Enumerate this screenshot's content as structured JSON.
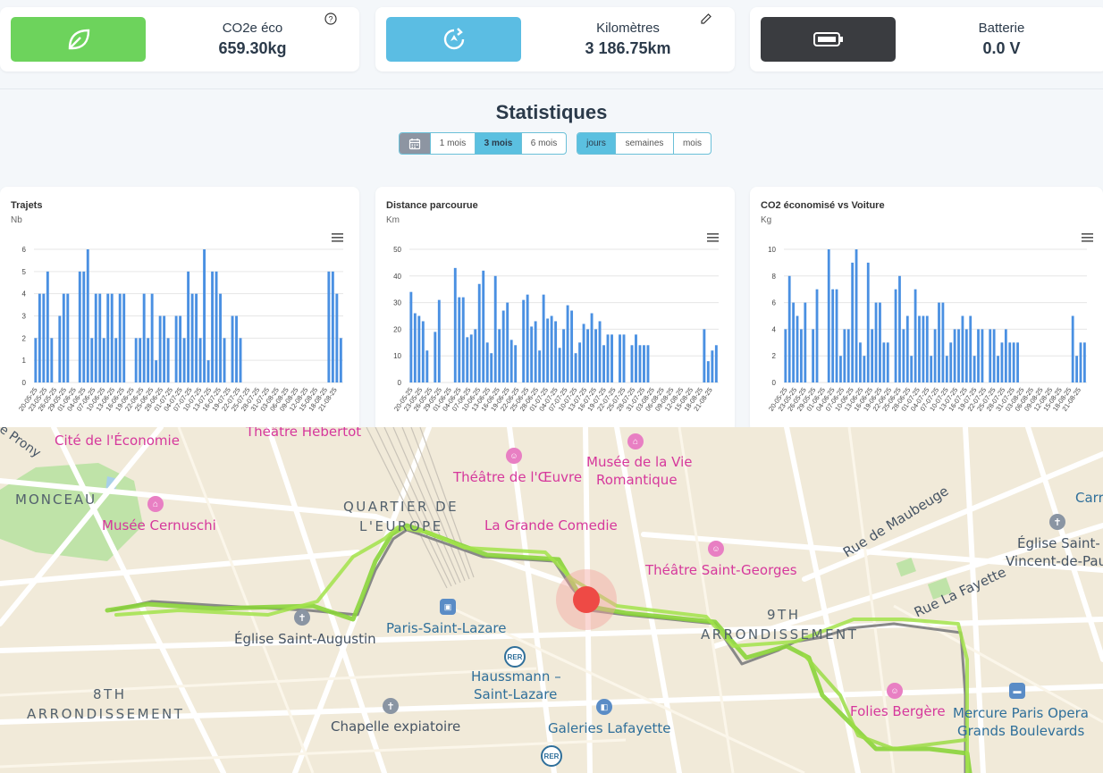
{
  "cards": [
    {
      "label": "CO2e éco",
      "value": "659.30kg",
      "icon": "leaf-icon",
      "color": "#6dd35c",
      "corner_icon": "help-circle-icon"
    },
    {
      "label": "Kilomètres",
      "value": "3 186.75km",
      "icon": "route-icon",
      "color": "#5bbde3",
      "corner_icon": "pencil-icon"
    },
    {
      "label": "Batterie",
      "value": "0.0 V",
      "icon": "battery-icon",
      "color": "#3a3c40"
    }
  ],
  "stats_title": "Statistiques",
  "range_buttons": [
    "1 mois",
    "3 mois",
    "6 mois"
  ],
  "range_selected": "3 mois",
  "period_buttons": [
    "jours",
    "semaines",
    "mois"
  ],
  "period_selected": "jours",
  "dates": [
    "20-05-25",
    "23-05-25",
    "26-05-25",
    "29-05-25",
    "01-06-25",
    "04-06-25",
    "07-06-25",
    "10-06-25",
    "13-06-25",
    "16-06-25",
    "19-06-25",
    "22-06-25",
    "25-06-25",
    "28-06-25",
    "01-07-25",
    "04-07-25",
    "07-07-25",
    "10-07-25",
    "13-07-25",
    "16-07-25",
    "19-07-25",
    "22-07-25",
    "25-07-25",
    "28-07-25",
    "31-07-25",
    "03-08-25",
    "06-08-25",
    "09-08-25",
    "12-08-25",
    "15-08-25",
    "18-08-25",
    "21-08-25"
  ],
  "chart_data": [
    {
      "type": "bar",
      "title": "Trajets",
      "ylabel": "Nb",
      "ylim": [
        0,
        6
      ],
      "yticks": [
        0,
        1,
        2,
        3,
        4,
        5,
        6
      ],
      "values": [
        2,
        4,
        4,
        5,
        2,
        0,
        3,
        4,
        4,
        0,
        0,
        5,
        5,
        6,
        2,
        4,
        4,
        2,
        4,
        4,
        2,
        4,
        4,
        0,
        0,
        2,
        2,
        4,
        2,
        4,
        1,
        3,
        3,
        2,
        0,
        3,
        3,
        2,
        5,
        4,
        4,
        2,
        6,
        1,
        5,
        5,
        4,
        2,
        0,
        3,
        3,
        2,
        0,
        0,
        0,
        0,
        0,
        0,
        0,
        0,
        0,
        0,
        0,
        0,
        0,
        0,
        0,
        0,
        0,
        0,
        0,
        0,
        0,
        5,
        5,
        4,
        2
      ]
    },
    {
      "type": "bar",
      "title": "Distance parcourue",
      "ylabel": "Km",
      "ylim": [
        0,
        50
      ],
      "yticks": [
        0,
        10,
        20,
        30,
        40,
        50
      ],
      "values": [
        34,
        26,
        25,
        23,
        12,
        0,
        19,
        31,
        0,
        0,
        0,
        43,
        32,
        32,
        17,
        18,
        20,
        37,
        42,
        15,
        11,
        40,
        20,
        27,
        30,
        16,
        14,
        0,
        31,
        33,
        21,
        23,
        12,
        33,
        24,
        25,
        23,
        13,
        20,
        29,
        27,
        11,
        15,
        22,
        20,
        26,
        20,
        23,
        14,
        18,
        18,
        0,
        18,
        18,
        0,
        14,
        18,
        14,
        14,
        14,
        0,
        0,
        0,
        0,
        0,
        0,
        0,
        0,
        0,
        0,
        0,
        0,
        0,
        20,
        8,
        12,
        14
      ]
    },
    {
      "type": "bar",
      "title": "CO2 économisé vs Voiture",
      "ylabel": "Kg",
      "ylim": [
        0,
        10
      ],
      "yticks": [
        0,
        2,
        4,
        6,
        8,
        10
      ],
      "values": [
        4,
        8,
        6,
        5,
        4,
        6,
        0,
        4,
        7,
        0,
        0,
        10,
        7,
        7,
        2,
        4,
        4,
        9,
        10,
        3,
        2,
        9,
        4,
        6,
        6,
        3,
        3,
        0,
        7,
        8,
        4,
        5,
        2,
        7,
        5,
        5,
        5,
        2,
        4,
        6,
        6,
        2,
        3,
        4,
        4,
        5,
        4,
        5,
        2,
        4,
        4,
        0,
        4,
        4,
        2,
        3,
        4,
        3,
        3,
        3,
        0,
        0,
        0,
        0,
        0,
        0,
        0,
        0,
        0,
        0,
        0,
        0,
        0,
        5,
        2,
        3,
        3
      ]
    }
  ],
  "map": {
    "labels": {
      "prony": "e Prony",
      "cite": "Cité de l'Économie",
      "hebertot": "Théâtre Hébertot",
      "monceau": "MONCEAU",
      "cernuschi": "Musée Cernuschi",
      "quartier1": "QUARTIER DE",
      "quartier2": "L'EUROPE",
      "oeuvre": "Théâtre de l'Œuvre",
      "vie1": "Musée de la Vie",
      "vie2": "Romantique",
      "comedie": "La Grande Comedie",
      "saint_georges": "Théâtre Saint-Georges",
      "maubeuge": "Rue de Maubeuge",
      "lafayette": "Rue La Fayette",
      "carr": "Carr",
      "vincent1": "Église Saint-",
      "vincent2": "Vincent-de-Pau",
      "augustin": "Église Saint-Augustin",
      "lazare": "Paris-Saint-Lazare",
      "haussmann1": "Haussmann –",
      "haussmann2": "Saint-Lazare",
      "arr9a": "9TH",
      "arr9b": "ARRONDISSEMENT",
      "arr8a": "8TH",
      "arr8b": "ARRONDISSEMENT",
      "chapelle": "Chapelle expiatoire",
      "galeries": "Galeries Lafayette",
      "folies": "Folies Bergère",
      "mercure1": "Mercure Paris Opera",
      "mercure2": "Grands Boulevards",
      "rer": "RER"
    }
  }
}
